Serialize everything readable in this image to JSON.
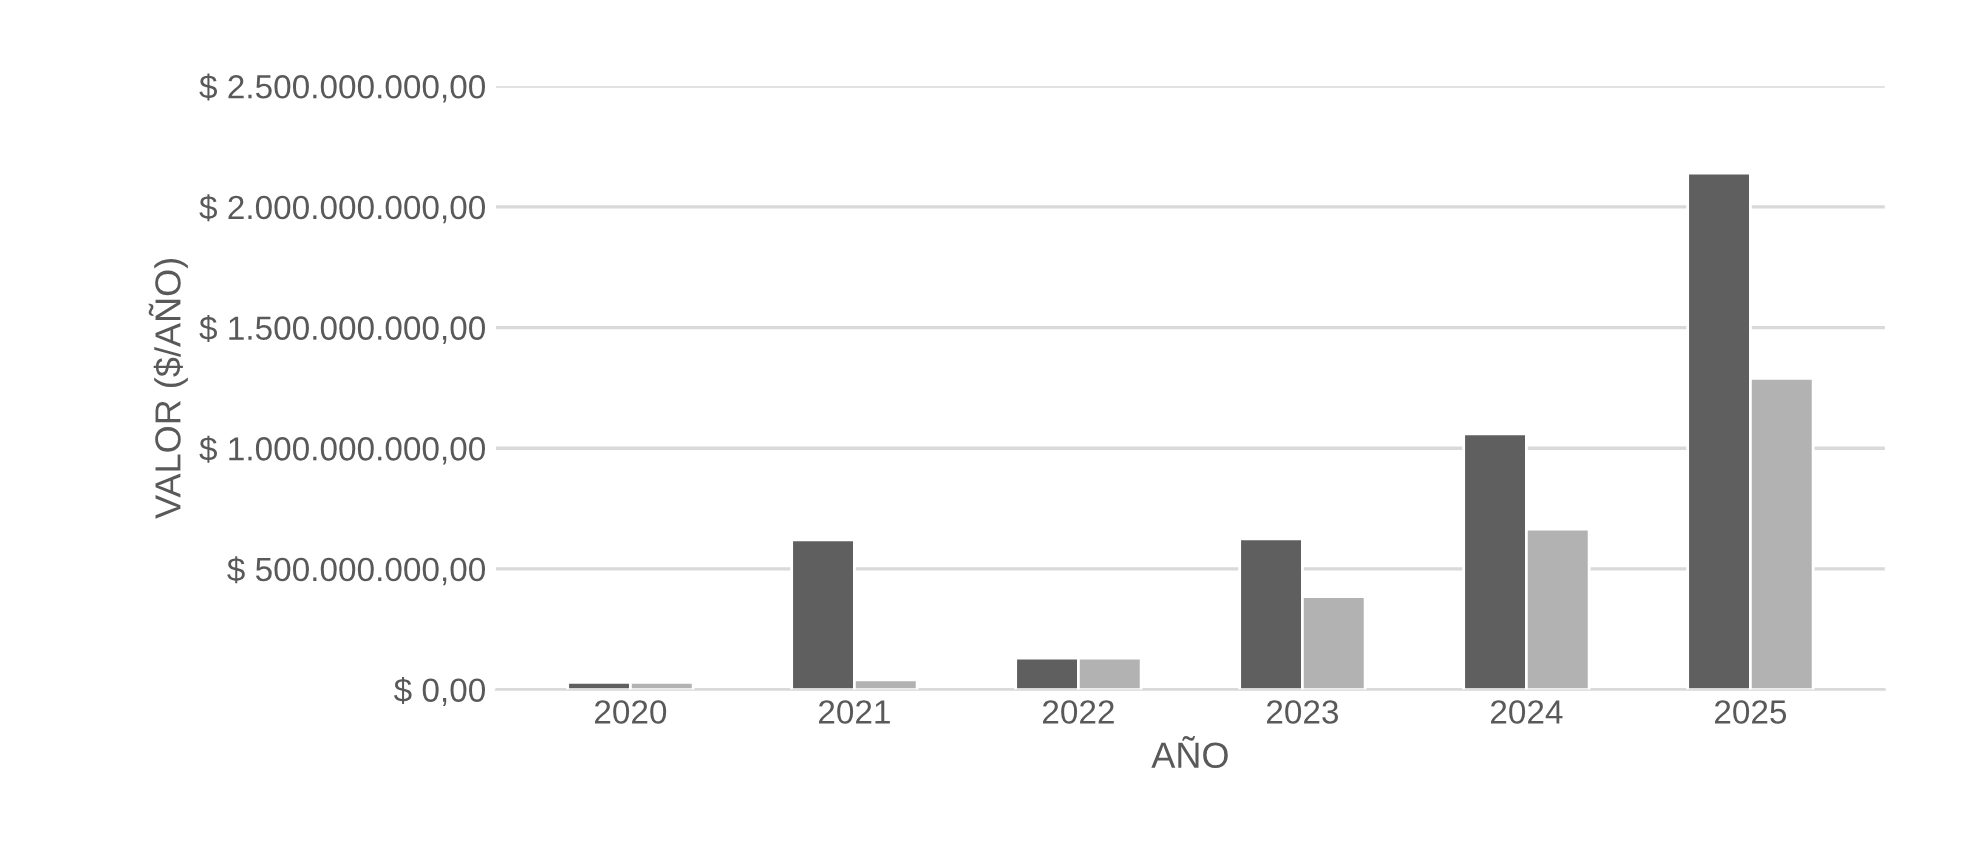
{
  "chart_data": {
    "type": "bar",
    "xlabel": "AÑO",
    "ylabel": "VALOR ($/AÑO)",
    "categories": [
      "2020",
      "2021",
      "2022",
      "2023",
      "2024",
      "2025"
    ],
    "series": [
      {
        "color": "#5f5f5f",
        "values": [
          30000000,
          620000000,
          130000000,
          625000000,
          1060000000,
          2140000000
        ]
      },
      {
        "color": "#b2b2b2",
        "values": [
          30000000,
          40000000,
          130000000,
          385000000,
          665000000,
          1290000000
        ]
      }
    ],
    "ylim": [
      0,
      2500000000
    ],
    "yticks": [
      {
        "value": 0,
        "label": "$ 0,00"
      },
      {
        "value": 500000000,
        "label": "$ 500.000.000,00"
      },
      {
        "value": 1000000000,
        "label": "$ 1.000.000.000,00"
      },
      {
        "value": 1500000000,
        "label": "$ 1.500.000.000,00"
      },
      {
        "value": 2000000000,
        "label": "$ 2.000.000.000,00"
      },
      {
        "value": 2500000000,
        "label": "$ 2.500.000.000,00"
      }
    ],
    "grid": "y",
    "legend": false
  }
}
